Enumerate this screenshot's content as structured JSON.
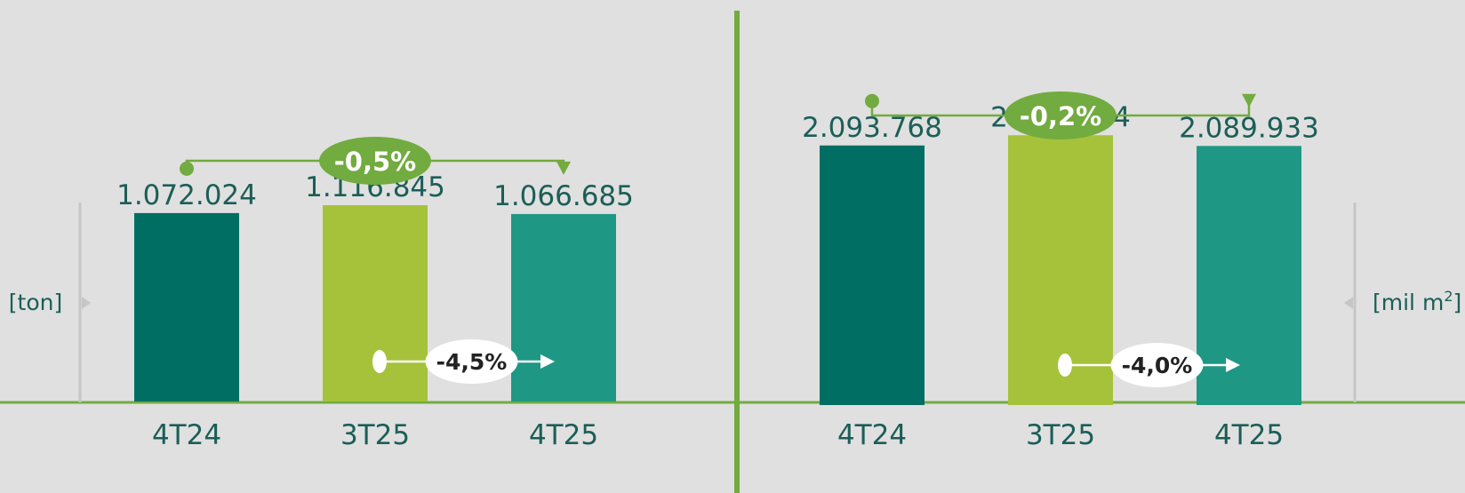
{
  "chart_data": [
    {
      "type": "bar",
      "unit_label": "[ton]",
      "categories": [
        "4T24",
        "3T25",
        "4T25"
      ],
      "values": [
        1072024,
        1116845,
        1066685
      ],
      "value_labels": [
        "1.072.024",
        "1.116.845",
        "1.066.685"
      ],
      "colors": [
        "#006e63",
        "#a6c23b",
        "#1f9785"
      ],
      "ylim": [
        0,
        1400000
      ],
      "change_year_over_year": "-0,5%",
      "change_quarter_over_quarter": "-4,5%"
    },
    {
      "type": "bar",
      "unit_label": "[mil m",
      "unit_sup": "2",
      "unit_close": "]",
      "categories": [
        "4T24",
        "3T25",
        "4T25"
      ],
      "values": [
        2093768,
        2176374,
        2089933
      ],
      "value_labels": [
        "2.093.768",
        "2.176.374",
        "2.089.933"
      ],
      "colors": [
        "#006e63",
        "#a6c23b",
        "#1f9785"
      ],
      "ylim": [
        0,
        2300000
      ],
      "change_year_over_year": "-0,2%",
      "change_quarter_over_quarter": "-4,0%"
    }
  ],
  "colors": {
    "accent_green": "#72ab3f",
    "text_teal": "#1b5e57",
    "background": "#e0e0e0",
    "axis_gray": "#c6c6c6"
  }
}
